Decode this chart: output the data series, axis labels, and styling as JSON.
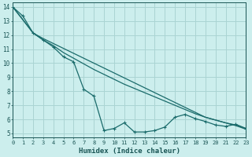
{
  "xlabel": "Humidex (Indice chaleur)",
  "bg_color": "#cceeed",
  "grid_color": "#aad4d3",
  "line_color": "#1a6b6b",
  "xlim": [
    0,
    23
  ],
  "ylim": [
    4.7,
    14.3
  ],
  "xticks": [
    0,
    1,
    2,
    3,
    4,
    5,
    6,
    7,
    8,
    9,
    10,
    11,
    12,
    13,
    14,
    15,
    16,
    17,
    18,
    19,
    20,
    21,
    22,
    23
  ],
  "yticks": [
    5,
    6,
    7,
    8,
    9,
    10,
    11,
    12,
    13,
    14
  ],
  "line_jagged_x": [
    0,
    1,
    2,
    3,
    4,
    5,
    6,
    7,
    8,
    9,
    10,
    11,
    12,
    13,
    14,
    15,
    16,
    17,
    18,
    19,
    20,
    21,
    22,
    23
  ],
  "line_jagged_y": [
    14.0,
    13.35,
    12.15,
    11.65,
    11.15,
    10.45,
    10.1,
    8.15,
    7.65,
    5.2,
    5.35,
    5.75,
    5.1,
    5.1,
    5.2,
    5.45,
    6.15,
    6.35,
    6.05,
    5.85,
    5.6,
    5.5,
    5.65,
    5.35
  ],
  "line_upper_x": [
    0,
    1,
    2,
    3,
    4,
    5,
    6,
    7,
    8,
    9,
    10,
    11,
    12,
    13,
    14,
    15,
    16,
    17,
    18,
    19,
    20,
    21,
    22,
    23
  ],
  "line_upper_y": [
    14.0,
    13.1,
    12.15,
    11.75,
    11.4,
    11.05,
    10.7,
    10.35,
    10.0,
    9.65,
    9.3,
    8.95,
    8.6,
    8.25,
    7.9,
    7.55,
    7.2,
    6.85,
    6.5,
    6.15,
    5.95,
    5.75,
    5.55,
    5.3
  ],
  "line_lower_x": [
    0,
    2,
    3,
    4,
    5,
    6,
    7,
    8,
    9,
    10,
    11,
    12,
    13,
    14,
    15,
    16,
    17,
    18,
    19,
    20,
    21,
    22,
    23
  ],
  "line_lower_y": [
    14.0,
    12.15,
    11.65,
    11.25,
    10.75,
    10.35,
    9.95,
    9.55,
    9.2,
    8.85,
    8.5,
    8.2,
    7.9,
    7.6,
    7.3,
    7.0,
    6.7,
    6.4,
    6.15,
    5.95,
    5.75,
    5.6,
    5.35
  ]
}
